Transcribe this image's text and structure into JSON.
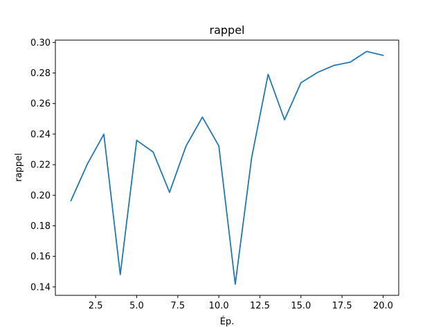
{
  "chart_data": {
    "type": "line",
    "title": "rappel",
    "xlabel": "Ép.",
    "ylabel": "rappel",
    "xlim": [
      0.05,
      20.95
    ],
    "ylim": [
      0.1345,
      0.3015
    ],
    "xticks": [
      2.5,
      5.0,
      7.5,
      10.0,
      12.5,
      15.0,
      17.5,
      20.0
    ],
    "xtick_labels": [
      "2.5",
      "5.0",
      "7.5",
      "10.0",
      "12.5",
      "15.0",
      "17.5",
      "20.0"
    ],
    "yticks": [
      0.14,
      0.16,
      0.18,
      0.2,
      0.22,
      0.24,
      0.26,
      0.28,
      0.3
    ],
    "ytick_labels": [
      "0.14",
      "0.16",
      "0.18",
      "0.20",
      "0.22",
      "0.24",
      "0.26",
      "0.28",
      "0.30"
    ],
    "grid": false,
    "legend": "none",
    "series": [
      {
        "color": "#1f77b4",
        "x": [
          1,
          2,
          3,
          4,
          5,
          6,
          7,
          8,
          9,
          10,
          11,
          12,
          13,
          14,
          15,
          16,
          17,
          18,
          19,
          20
        ],
        "y": [
          0.1965,
          0.2205,
          0.2399,
          0.1481,
          0.2359,
          0.2283,
          0.2019,
          0.2321,
          0.2511,
          0.2323,
          0.1418,
          0.2247,
          0.2791,
          0.2494,
          0.2736,
          0.2803,
          0.2849,
          0.2871,
          0.2941,
          0.2915
        ]
      }
    ]
  }
}
